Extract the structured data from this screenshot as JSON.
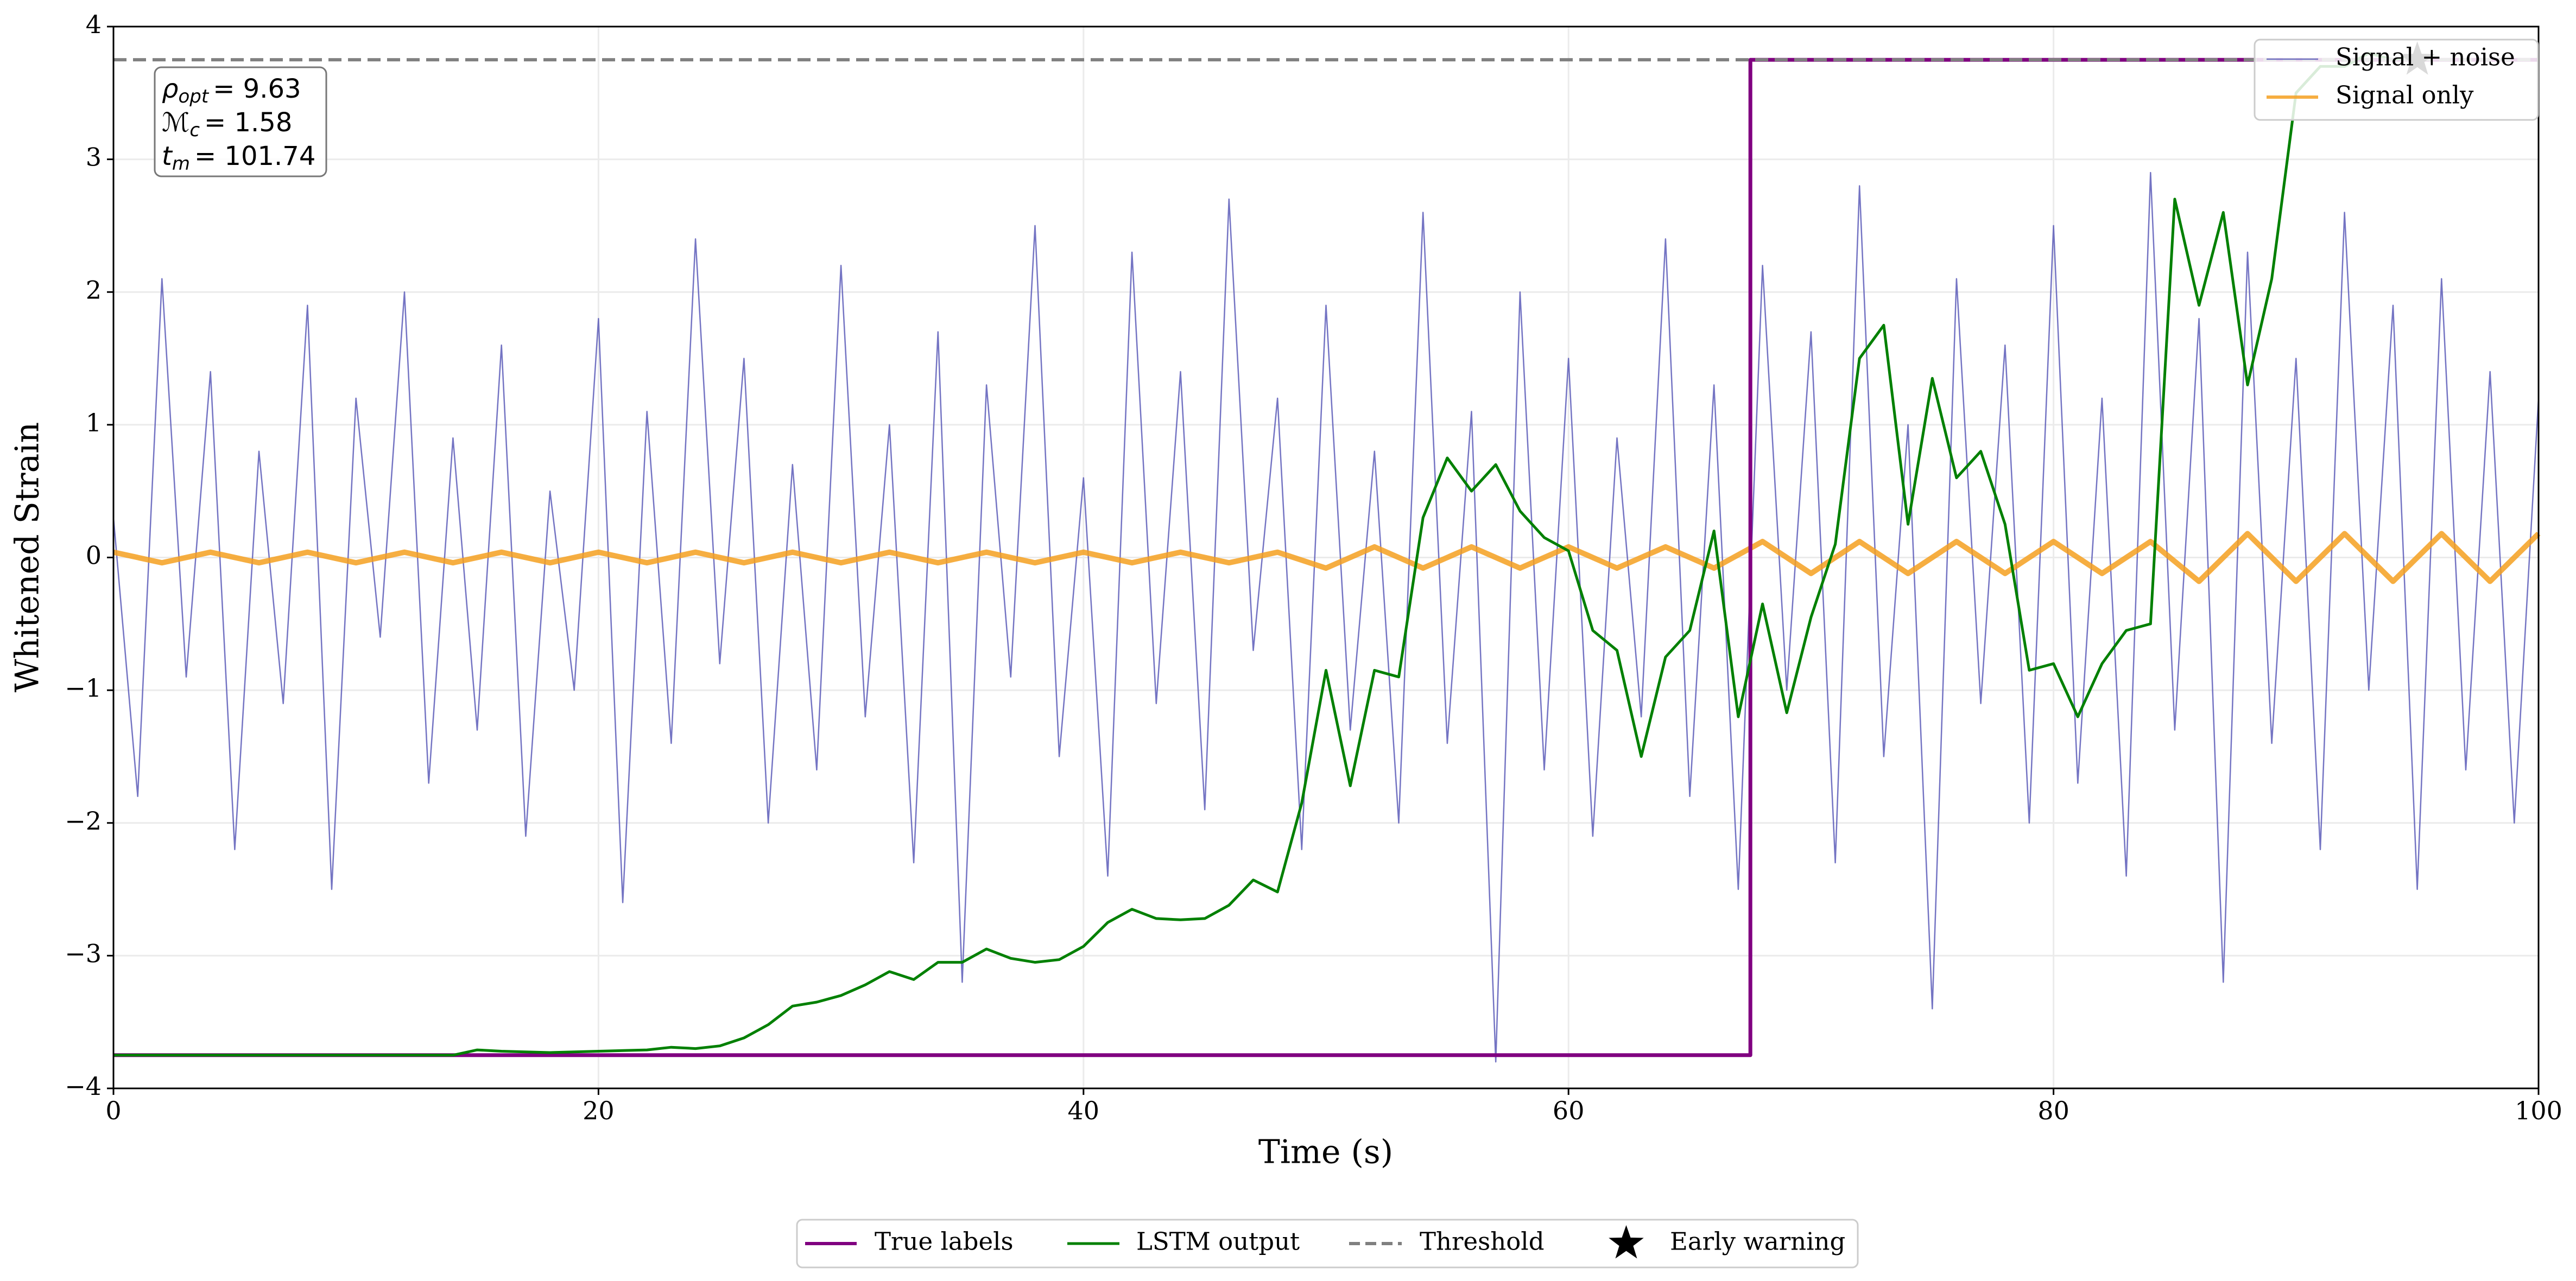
{
  "chart_data": {
    "type": "line",
    "xlabel": "Time (s)",
    "ylabel": "Whitened Strain",
    "xlim": [
      0,
      100
    ],
    "ylim": [
      -4,
      4
    ],
    "xticks": [
      0,
      20,
      40,
      60,
      80,
      100
    ],
    "yticks": [
      {
        "value": -4,
        "label": "−4"
      },
      {
        "value": -3,
        "label": "−3"
      },
      {
        "value": -2,
        "label": "−2"
      },
      {
        "value": -1,
        "label": "−1"
      },
      0,
      1,
      2,
      3,
      4
    ],
    "grid": true,
    "annotations": [
      {
        "symbol": "ρ",
        "sub": "opt",
        "text": "= 9.63"
      },
      {
        "symbol": "ℳ",
        "sub": "c",
        "text": "= 1.58"
      },
      {
        "symbol": "t",
        "sub": "m",
        "text": "= 101.74"
      }
    ],
    "series": [
      {
        "name": "Signal + noise",
        "color": "#5c5cb8",
        "legend": "upper right",
        "x": [
          0,
          1,
          2,
          3,
          4,
          5,
          6,
          7,
          8,
          9,
          10,
          11,
          12,
          13,
          14,
          15,
          16,
          17,
          18,
          19,
          20,
          21,
          22,
          23,
          24,
          25,
          26,
          27,
          28,
          29,
          30,
          31,
          32,
          33,
          34,
          35,
          36,
          37,
          38,
          39,
          40,
          41,
          42,
          43,
          44,
          45,
          46,
          47,
          48,
          49,
          50,
          51,
          52,
          53,
          54,
          55,
          56,
          57,
          58,
          59,
          60,
          61,
          62,
          63,
          64,
          65,
          66,
          67,
          68,
          69,
          70,
          71,
          72,
          73,
          74,
          75,
          76,
          77,
          78,
          79,
          80,
          81,
          82,
          83,
          84,
          85,
          86,
          87,
          88,
          89,
          90,
          91,
          92,
          93,
          94,
          95,
          96,
          97,
          98,
          99,
          100
        ],
        "values": [
          0.3,
          -1.8,
          2.1,
          -0.9,
          1.4,
          -2.2,
          0.8,
          -1.1,
          1.9,
          -2.5,
          1.2,
          -0.6,
          2.0,
          -1.7,
          0.9,
          -1.3,
          1.6,
          -2.1,
          0.5,
          -1.0,
          1.8,
          -2.6,
          1.1,
          -1.4,
          2.4,
          -0.8,
          1.5,
          -2.0,
          0.7,
          -1.6,
          2.2,
          -1.2,
          1.0,
          -2.3,
          1.7,
          -3.2,
          1.3,
          -0.9,
          2.5,
          -1.5,
          0.6,
          -2.4,
          2.3,
          -1.1,
          1.4,
          -1.9,
          2.7,
          -0.7,
          1.2,
          -2.2,
          1.9,
          -1.3,
          0.8,
          -2.0,
          2.6,
          -1.4,
          1.1,
          -3.8,
          2.0,
          -1.6,
          1.5,
          -2.1,
          0.9,
          -1.2,
          2.4,
          -1.8,
          1.3,
          -2.5,
          2.2,
          -1.0,
          1.7,
          -2.3,
          2.8,
          -1.5,
          1.0,
          -3.4,
          2.1,
          -1.1,
          1.6,
          -2.0,
          2.5,
          -1.7,
          1.2,
          -2.4,
          2.9,
          -1.3,
          1.8,
          -3.2,
          2.3,
          -1.4,
          1.5,
          -2.2,
          2.6,
          -1.0,
          1.9,
          -2.5,
          2.1,
          -1.6,
          1.4,
          -2.0,
          1.2
        ]
      },
      {
        "name": "Signal only",
        "color": "#f5a020",
        "legend": "upper right",
        "x": [
          0,
          2,
          4,
          6,
          8,
          10,
          12,
          14,
          16,
          18,
          20,
          22,
          24,
          26,
          28,
          30,
          32,
          34,
          36,
          38,
          40,
          42,
          44,
          46,
          48,
          50,
          52,
          54,
          56,
          58,
          60,
          62,
          64,
          66,
          68,
          70,
          72,
          74,
          76,
          78,
          80,
          82,
          84,
          86,
          88,
          90,
          92,
          94,
          96,
          98,
          100
        ],
        "values": [
          0.04,
          -0.04,
          0.04,
          -0.04,
          0.04,
          -0.04,
          0.04,
          -0.04,
          0.04,
          -0.04,
          0.04,
          -0.04,
          0.04,
          -0.04,
          0.04,
          -0.04,
          0.04,
          -0.04,
          0.04,
          -0.04,
          0.04,
          -0.04,
          0.04,
          -0.04,
          0.04,
          -0.08,
          0.08,
          -0.08,
          0.08,
          -0.08,
          0.08,
          -0.08,
          0.08,
          -0.08,
          0.12,
          -0.12,
          0.12,
          -0.12,
          0.12,
          -0.12,
          0.12,
          -0.12,
          0.12,
          -0.18,
          0.18,
          -0.18,
          0.18,
          -0.18,
          0.18,
          -0.18,
          0.18
        ]
      },
      {
        "name": "True labels",
        "color": "#800080",
        "legend": "lower center",
        "x": [
          0,
          67.5,
          67.5,
          100
        ],
        "values": [
          -3.75,
          -3.75,
          3.75,
          3.75
        ]
      },
      {
        "name": "LSTM output",
        "color": "#008000",
        "legend": "lower center",
        "x": [
          0,
          5,
          10,
          14,
          15,
          16,
          18,
          20,
          22,
          23,
          24,
          25,
          26,
          27,
          28,
          29,
          30,
          31,
          32,
          33,
          34,
          35,
          36,
          37,
          38,
          39,
          40,
          41,
          42,
          43,
          44,
          45,
          46,
          47,
          48,
          49,
          50,
          51,
          52,
          53,
          54,
          55,
          56,
          57,
          58,
          59,
          60,
          61,
          62,
          63,
          64,
          65,
          66,
          67,
          68,
          69,
          70,
          71,
          72,
          73,
          74,
          75,
          76,
          77,
          78,
          79,
          80,
          81,
          82,
          83,
          84,
          85,
          86,
          87,
          88,
          89,
          90,
          91,
          92,
          93,
          94,
          95
        ],
        "values": [
          -3.75,
          -3.75,
          -3.75,
          -3.75,
          -3.71,
          -3.72,
          -3.73,
          -3.72,
          -3.71,
          -3.69,
          -3.7,
          -3.68,
          -3.62,
          -3.52,
          -3.38,
          -3.35,
          -3.3,
          -3.22,
          -3.12,
          -3.18,
          -3.05,
          -3.05,
          -2.95,
          -3.02,
          -3.05,
          -3.03,
          -2.93,
          -2.75,
          -2.65,
          -2.72,
          -2.73,
          -2.72,
          -2.62,
          -2.43,
          -2.52,
          -1.85,
          -0.85,
          -1.72,
          -0.85,
          -0.9,
          0.3,
          0.75,
          0.5,
          0.7,
          0.35,
          0.15,
          0.05,
          -0.55,
          -0.7,
          -1.5,
          -0.75,
          -0.55,
          0.2,
          -1.2,
          -0.35,
          -1.17,
          -0.45,
          0.1,
          1.5,
          1.75,
          0.25,
          1.35,
          0.6,
          0.8,
          0.25,
          -0.85,
          -0.8,
          -1.2,
          -0.8,
          -0.55,
          -0.5,
          2.7,
          1.9,
          2.6,
          1.3,
          2.1,
          3.5,
          3.7,
          3.7,
          3.8,
          3.75,
          3.78
        ]
      },
      {
        "name": "Threshold",
        "color": "#808080",
        "legend": "lower center",
        "dash": true,
        "hline": 3.75
      },
      {
        "name": "Early warning",
        "color": "#000000",
        "legend": "lower center",
        "marker": "star",
        "x": [
          95
        ],
        "values": [
          3.75
        ]
      }
    ]
  }
}
